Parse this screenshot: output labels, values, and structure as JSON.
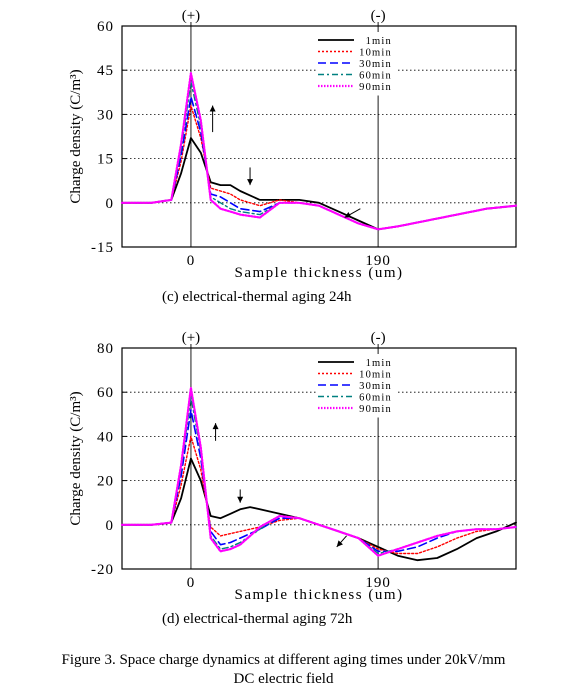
{
  "charts": [
    {
      "type": "line",
      "subcaption": "(c)     electrical-thermal aging 24h",
      "xlabel": "Sample thickness (um)",
      "ylabel": "Charge density (C/m³)",
      "xlim": [
        -70,
        330
      ],
      "ylim": [
        -15,
        60
      ],
      "yticks": [
        "60",
        "45",
        "30",
        "15",
        "0",
        "-15"
      ],
      "xticks": [
        "0",
        "190"
      ],
      "electrode_labels": [
        "(+)",
        "(-)"
      ],
      "grid": "horizontal dotted",
      "legend_position": "top-right",
      "series": [
        {
          "name": "1min",
          "color": "#000000",
          "dash": "",
          "width": 1.8,
          "x": [
            -70,
            -40,
            -20,
            -10,
            0,
            10,
            20,
            30,
            40,
            50,
            70,
            90,
            110,
            130,
            150,
            170,
            190,
            210,
            240,
            270,
            300,
            330
          ],
          "y": [
            0,
            0,
            1,
            10,
            22,
            17,
            7,
            6,
            6,
            4,
            1,
            1,
            1,
            0,
            -3,
            -6,
            -9,
            -8,
            -6,
            -4,
            -2,
            -1
          ]
        },
        {
          "name": "10min",
          "color": "#ff0000",
          "dash": "2,2",
          "width": 1.4,
          "x": [
            -70,
            -40,
            -20,
            -10,
            0,
            10,
            20,
            30,
            40,
            50,
            70,
            90,
            110,
            130,
            150,
            170,
            190,
            210,
            240,
            270,
            300,
            330
          ],
          "y": [
            0,
            0,
            1,
            14,
            33,
            22,
            5,
            4,
            3,
            1,
            -1,
            1,
            0,
            -1,
            -4,
            -7,
            -9,
            -8,
            -6,
            -4,
            -2,
            -1
          ]
        },
        {
          "name": "30min",
          "color": "#0000ff",
          "dash": "8,4",
          "width": 1.6,
          "x": [
            -70,
            -40,
            -20,
            -10,
            0,
            10,
            20,
            30,
            40,
            50,
            70,
            90,
            110,
            130,
            150,
            170,
            190,
            210,
            240,
            270,
            300,
            330
          ],
          "y": [
            0,
            0,
            1,
            16,
            36,
            24,
            3,
            2,
            0,
            -2,
            -3,
            0,
            0,
            -1,
            -4,
            -7,
            -9,
            -8,
            -6,
            -4,
            -2,
            -1
          ]
        },
        {
          "name": "60min",
          "color": "#008080",
          "dash": "6,3,2,3",
          "width": 1.4,
          "x": [
            -70,
            -40,
            -20,
            -10,
            0,
            10,
            20,
            30,
            40,
            50,
            70,
            90,
            110,
            130,
            150,
            170,
            190,
            210,
            240,
            270,
            300,
            330
          ],
          "y": [
            0,
            0,
            1,
            18,
            41,
            26,
            2,
            0,
            -2,
            -3,
            -4,
            0,
            0,
            -1,
            -4,
            -7,
            -9,
            -8,
            -6,
            -4,
            -2,
            -1
          ]
        },
        {
          "name": "90min",
          "color": "#ff00ff",
          "dash": "1.5,1.5",
          "width": 2.2,
          "x": [
            -70,
            -40,
            -20,
            -10,
            0,
            10,
            20,
            30,
            40,
            50,
            70,
            90,
            110,
            130,
            150,
            170,
            190,
            210,
            240,
            270,
            300,
            330
          ],
          "y": [
            0,
            0,
            1,
            20,
            44,
            28,
            1,
            -2,
            -3,
            -4,
            -5,
            0,
            0,
            -1,
            -4,
            -7,
            -9,
            -8,
            -6,
            -4,
            -2,
            -1
          ]
        }
      ],
      "arrows": [
        {
          "from": [
            22,
            24
          ],
          "to": [
            22,
            33
          ]
        },
        {
          "from": [
            60,
            12
          ],
          "to": [
            60,
            6
          ]
        },
        {
          "from": [
            172,
            -2
          ],
          "to": [
            156,
            -5
          ]
        }
      ]
    },
    {
      "type": "line",
      "subcaption": "(d)     electrical-thermal aging 72h",
      "xlabel": "Sample thickness (um)",
      "ylabel": "Charge density (C/m³)",
      "xlim": [
        -70,
        330
      ],
      "ylim": [
        -20,
        80
      ],
      "yticks": [
        "80",
        "60",
        "40",
        "20",
        "0",
        "-20"
      ],
      "xticks": [
        "0",
        "190"
      ],
      "electrode_labels": [
        "(+)",
        "(-)"
      ],
      "grid": "horizontal dotted",
      "legend_position": "top-right",
      "series": [
        {
          "name": "1min",
          "color": "#000000",
          "dash": "",
          "width": 1.8,
          "x": [
            -70,
            -40,
            -20,
            -10,
            0,
            10,
            20,
            30,
            40,
            50,
            60,
            70,
            90,
            110,
            130,
            150,
            170,
            190,
            210,
            230,
            250,
            270,
            290,
            310,
            330
          ],
          "y": [
            0,
            0,
            1,
            12,
            30,
            20,
            4,
            3,
            5,
            7,
            8,
            7,
            5,
            3,
            0,
            -3,
            -6,
            -10,
            -14,
            -16,
            -15,
            -11,
            -6,
            -3,
            1
          ]
        },
        {
          "name": "10min",
          "color": "#ff0000",
          "dash": "2,2",
          "width": 1.4,
          "x": [
            -70,
            -40,
            -20,
            -10,
            0,
            10,
            20,
            30,
            40,
            50,
            60,
            70,
            90,
            110,
            130,
            150,
            170,
            190,
            210,
            230,
            250,
            270,
            290,
            310,
            330
          ],
          "y": [
            0,
            0,
            1,
            18,
            40,
            25,
            -1,
            -5,
            -4,
            -3,
            -2,
            -1,
            2,
            3,
            0,
            -3,
            -6,
            -11,
            -13,
            -13,
            -10,
            -6,
            -3,
            -2,
            -1
          ]
        },
        {
          "name": "30min",
          "color": "#0000ff",
          "dash": "8,4",
          "width": 1.6,
          "x": [
            -70,
            -40,
            -20,
            -10,
            0,
            10,
            20,
            30,
            40,
            50,
            60,
            70,
            90,
            110,
            130,
            150,
            170,
            190,
            210,
            230,
            250,
            270,
            290,
            310,
            330
          ],
          "y": [
            0,
            0,
            1,
            22,
            52,
            30,
            -3,
            -9,
            -8,
            -6,
            -4,
            -2,
            3,
            3,
            0,
            -3,
            -6,
            -12,
            -12,
            -10,
            -6,
            -3,
            -2,
            -2,
            -1
          ]
        },
        {
          "name": "60min",
          "color": "#008080",
          "dash": "6,3,2,3",
          "width": 1.4,
          "x": [
            -70,
            -40,
            -20,
            -10,
            0,
            10,
            20,
            30,
            40,
            50,
            60,
            70,
            90,
            110,
            130,
            150,
            170,
            190,
            210,
            230,
            250,
            270,
            290,
            310,
            330
          ],
          "y": [
            0,
            0,
            1,
            25,
            58,
            33,
            -5,
            -11,
            -10,
            -8,
            -5,
            -2,
            4,
            3,
            0,
            -3,
            -6,
            -13,
            -11,
            -8,
            -5,
            -3,
            -2,
            -2,
            -1
          ]
        },
        {
          "name": "90min",
          "color": "#ff00ff",
          "dash": "1.5,1.5",
          "width": 2.2,
          "x": [
            -70,
            -40,
            -20,
            -10,
            0,
            10,
            20,
            30,
            40,
            50,
            60,
            70,
            90,
            110,
            130,
            150,
            170,
            190,
            210,
            230,
            250,
            270,
            290,
            310,
            330
          ],
          "y": [
            0,
            0,
            1,
            27,
            62,
            35,
            -6,
            -12,
            -11,
            -9,
            -5,
            -1,
            4,
            3,
            0,
            -3,
            -6,
            -14,
            -11,
            -8,
            -5,
            -3,
            -2,
            -2,
            -1
          ]
        }
      ],
      "arrows": [
        {
          "from": [
            25,
            38
          ],
          "to": [
            25,
            46
          ]
        },
        {
          "from": [
            50,
            16
          ],
          "to": [
            50,
            10
          ]
        },
        {
          "from": [
            158,
            -5
          ],
          "to": [
            148,
            -10
          ]
        }
      ]
    }
  ],
  "figure_caption": {
    "line1": "Figure 3.    Space charge dynamics at different aging times under 20kV/mm",
    "line2": "DC electric field"
  }
}
